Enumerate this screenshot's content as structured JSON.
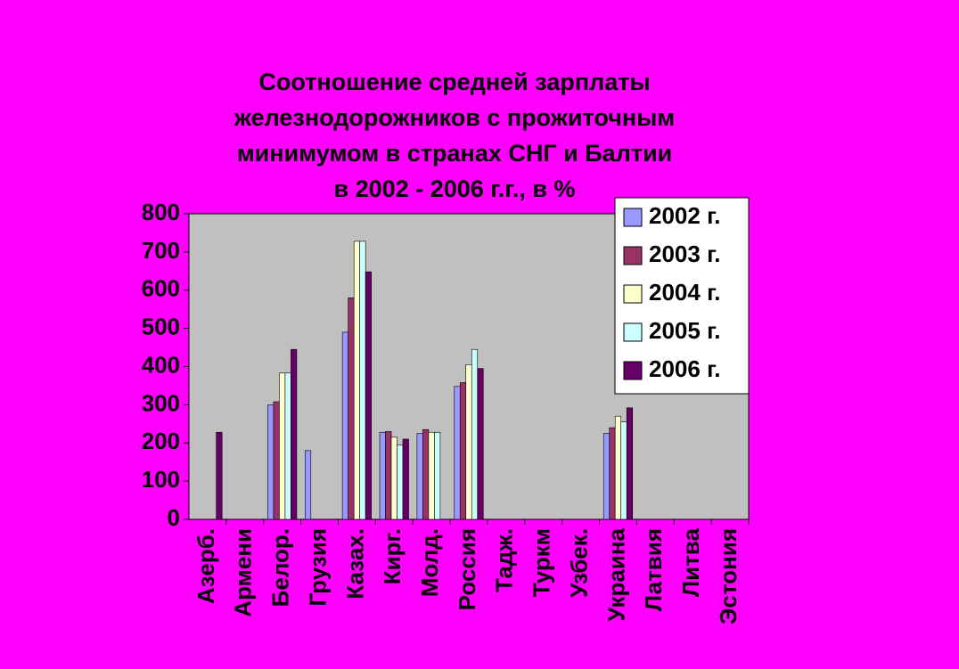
{
  "chart_data": {
    "type": "bar",
    "title": [
      "Соотношение средней зарплаты",
      "железнодорожников с  прожиточным",
      "минимумом в странах СНГ и Балтии",
      "в 2002 - 2006 г.г., в %"
    ],
    "categories": [
      "Азерб.",
      "Армени",
      "Белор.",
      "Грузия",
      "Казах.",
      "Кирг.",
      "Молд.",
      "Россия",
      "Тадж.",
      "Туркм",
      "Узбек.",
      "Украина",
      "Латвия",
      "Литва",
      "Эстония"
    ],
    "series": [
      {
        "name": "2002 г.",
        "color": "#9999ff",
        "values": [
          null,
          null,
          300,
          180,
          490,
          228,
          225,
          348,
          null,
          null,
          null,
          225,
          null,
          null,
          null
        ]
      },
      {
        "name": "2003 г.",
        "color": "#993366",
        "values": [
          null,
          null,
          308,
          null,
          580,
          230,
          235,
          358,
          null,
          null,
          null,
          240,
          null,
          null,
          null
        ]
      },
      {
        "name": "2004 г.",
        "color": "#ffffcc",
        "values": [
          null,
          null,
          383,
          null,
          728,
          215,
          228,
          405,
          null,
          null,
          null,
          270,
          null,
          null,
          null
        ]
      },
      {
        "name": "2005 г.",
        "color": "#ccffff",
        "values": [
          null,
          null,
          383,
          null,
          728,
          195,
          228,
          445,
          null,
          null,
          null,
          255,
          null,
          null,
          null
        ]
      },
      {
        "name": "2006 г.",
        "color": "#660066",
        "values": [
          228,
          null,
          445,
          null,
          648,
          210,
          null,
          395,
          null,
          null,
          null,
          292,
          null,
          null,
          null
        ]
      }
    ],
    "ylim": [
      0,
      800
    ],
    "yticks": [
      0,
      100,
      200,
      300,
      400,
      500,
      600,
      700,
      800
    ],
    "grid": false,
    "legend": "upper right"
  }
}
